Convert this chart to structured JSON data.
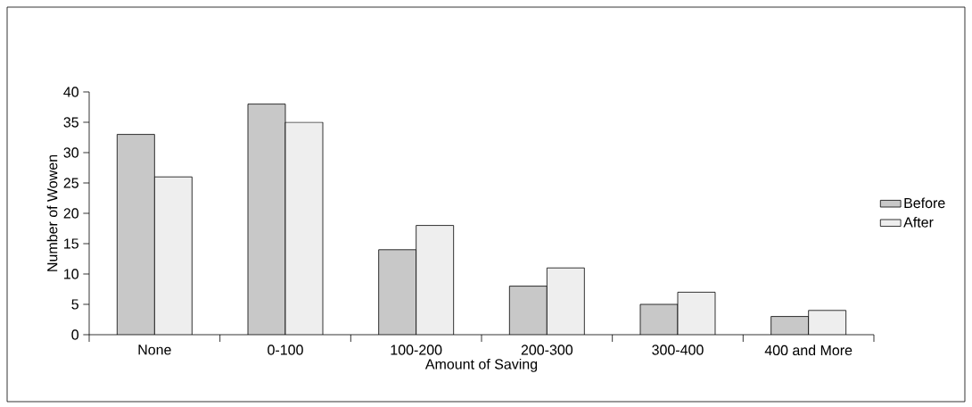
{
  "chart_data": {
    "type": "bar",
    "xlabel": "Amount of Saving",
    "ylabel": "Number of Wowen",
    "categories": [
      "None",
      "0-100",
      "100-200",
      "200-300",
      "300-400",
      "400 and More"
    ],
    "series": [
      {
        "name": "Before",
        "color": "#c8c8c8",
        "values": [
          33,
          38,
          14,
          8,
          5,
          3
        ]
      },
      {
        "name": "After",
        "color": "#eeeeee",
        "values": [
          26,
          35,
          18,
          11,
          7,
          4
        ]
      }
    ],
    "ylim": [
      0,
      40
    ],
    "yticks": [
      0,
      5,
      10,
      15,
      20,
      25,
      30,
      35,
      40
    ],
    "grid": false,
    "legend": "right"
  }
}
